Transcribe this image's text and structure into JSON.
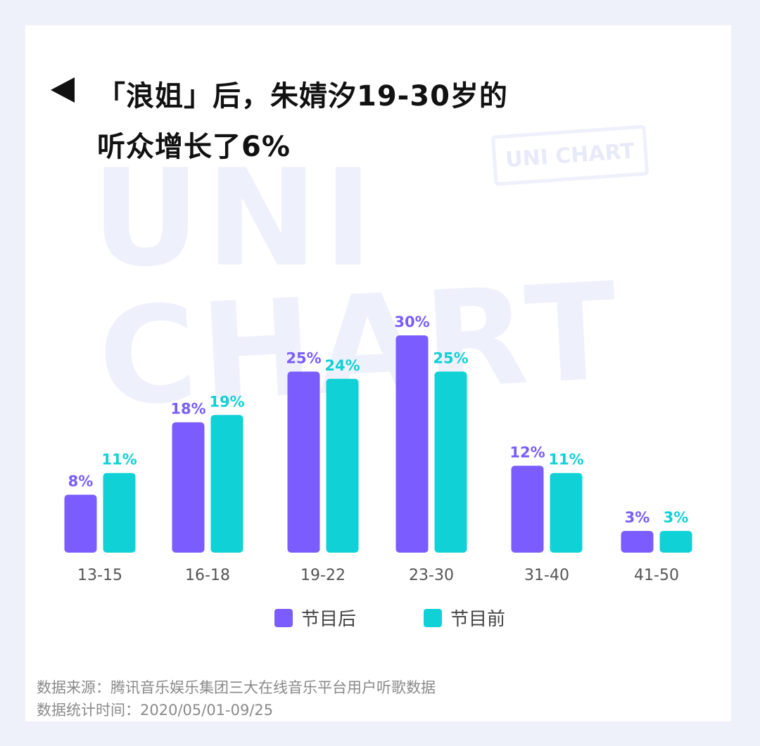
{
  "title": {
    "line1": "「浪姐」后，朱婧汐19-30岁的",
    "line2": "听众增长了6%"
  },
  "watermark": {
    "big_line1": "UNI",
    "big_line2": "CHART",
    "stamp": "UNI CHART"
  },
  "colors": {
    "after": "#7b5cff",
    "before": "#0fd1d6",
    "axis_text": "#555555"
  },
  "chart_data": {
    "type": "bar",
    "categories": [
      "13-15",
      "16-18",
      "19-22",
      "23-30",
      "31-40",
      "41-50"
    ],
    "series": [
      {
        "name": "节目后",
        "values": [
          8,
          18,
          25,
          30,
          12,
          3
        ],
        "labels": [
          "8%",
          "18%",
          "25%",
          "30%",
          "12%",
          "3%"
        ]
      },
      {
        "name": "节目前",
        "values": [
          11,
          19,
          24,
          25,
          11,
          3
        ],
        "labels": [
          "11%",
          "19%",
          "24%",
          "25%",
          "11%",
          "3%"
        ]
      }
    ],
    "unit": "%",
    "ylim": [
      0,
      30
    ],
    "grid": false,
    "legend_position": "bottom"
  },
  "footer": {
    "source": "数据来源：腾讯音乐娱乐集团三大在线音乐平台用户听歌数据",
    "period": "数据统计时间：2020/05/01-09/25"
  }
}
